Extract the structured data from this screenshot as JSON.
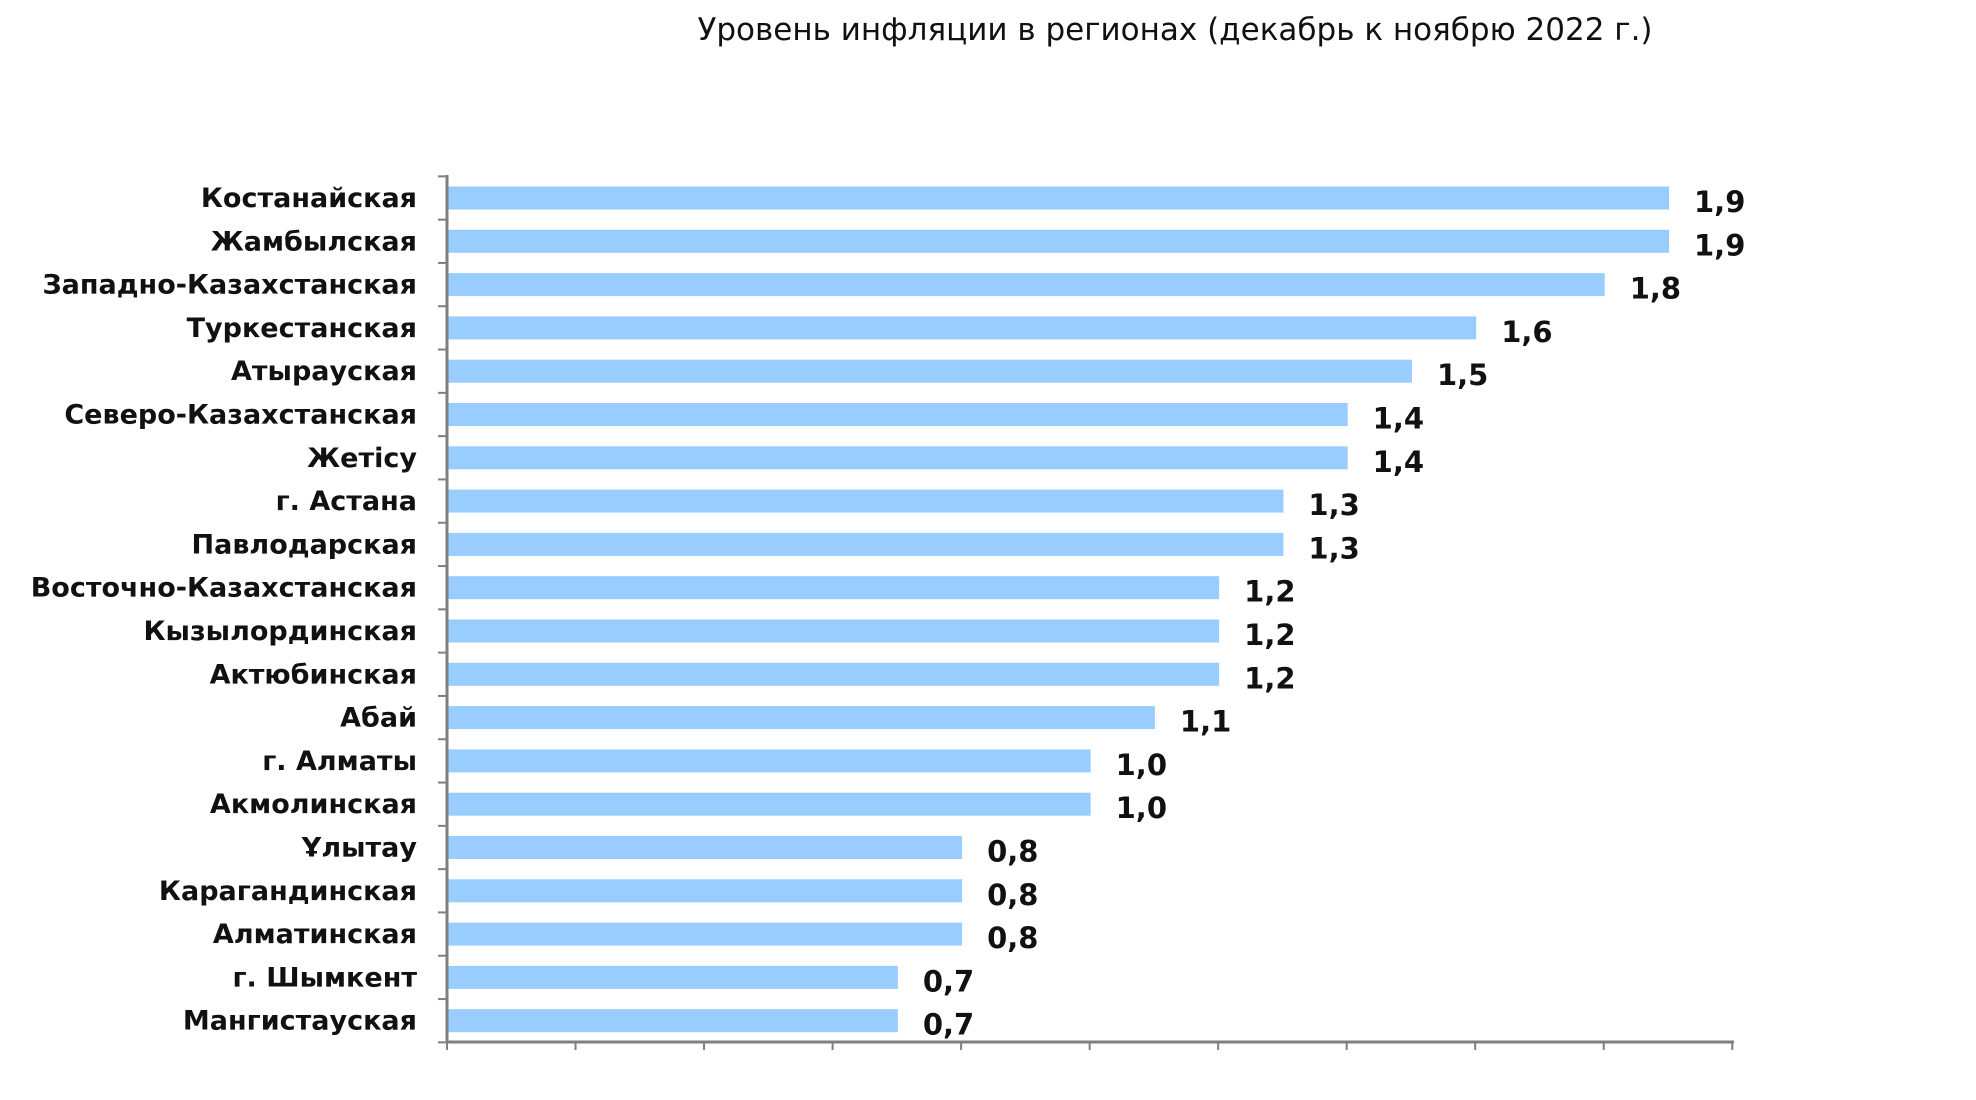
{
  "chart_data": {
    "type": "bar",
    "orientation": "horizontal",
    "title": "Уровень инфляции в регионах (декабрь к ноябрю 2022 г.)",
    "xlabel": "",
    "ylabel": "",
    "xlim": [
      0,
      2
    ],
    "grid": false,
    "legend": "none",
    "bar_color": "#99CCFF",
    "categories": [
      "Костанайская",
      "Жамбылская",
      "Западно-Казахстанская",
      "Туркестанская",
      "Атырауская",
      "Северо-Казахстанская",
      "Жетісу",
      "г. Астана",
      "Павлодарская",
      "Восточно-Казахстанская",
      "Кызылординская",
      "Актюбинская",
      "Абай",
      "г. Алматы",
      "Акмолинская",
      "Ұлытау",
      "Карагандинская",
      "Алматинская",
      "г. Шымкент",
      "Мангистауская"
    ],
    "values": [
      1.9,
      1.9,
      1.8,
      1.6,
      1.5,
      1.4,
      1.4,
      1.3,
      1.3,
      1.2,
      1.2,
      1.2,
      1.1,
      1.0,
      1.0,
      0.8,
      0.8,
      0.8,
      0.7,
      0.7
    ],
    "value_labels": [
      "1,9",
      "1,9",
      "1,8",
      "1,6",
      "1,5",
      "1,4",
      "1,4",
      "1,3",
      "1,3",
      "1,2",
      "1,2",
      "1,2",
      "1,1",
      "1,0",
      "1,0",
      "0,8",
      "0,8",
      "0,8",
      "0,7",
      "0,7"
    ]
  }
}
